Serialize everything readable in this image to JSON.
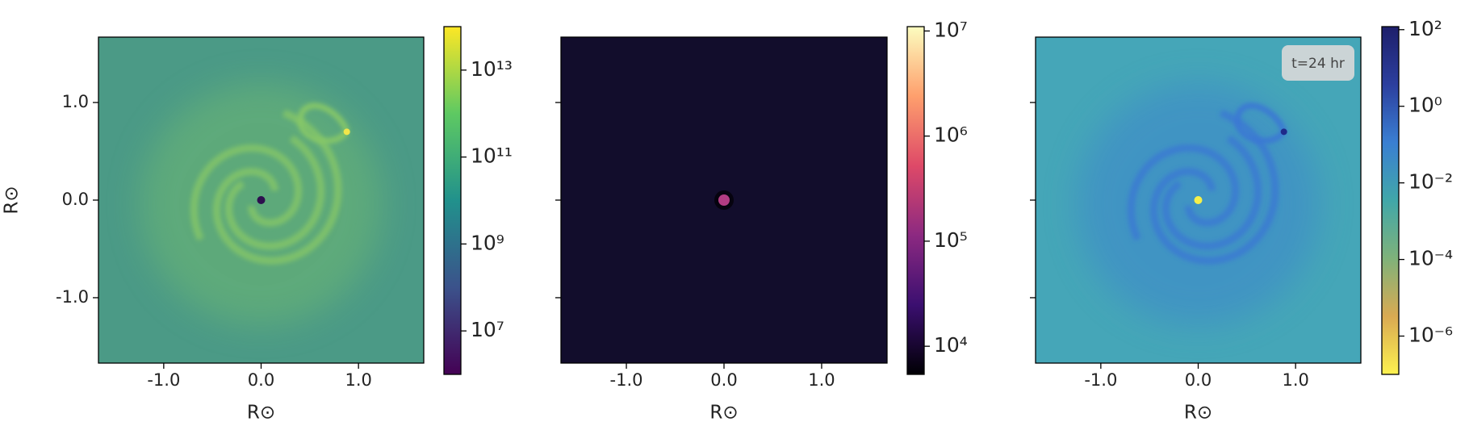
{
  "chart_data": [
    {
      "type": "heatmap",
      "xlabel": "R⊙",
      "ylabel": "R⊙",
      "xlim": [
        -1.67,
        1.67
      ],
      "ylim": [
        -1.67,
        1.67
      ],
      "xticks": [
        {
          "value": -1,
          "label": "-1.0"
        },
        {
          "value": 0,
          "label": "0.0"
        },
        {
          "value": 1,
          "label": "1.0"
        }
      ],
      "yticks": [
        {
          "value": -1,
          "label": "-1.0"
        },
        {
          "value": 0,
          "label": "0.0"
        },
        {
          "value": 1,
          "label": "1.0"
        }
      ],
      "colorbar": {
        "scale": "log",
        "lim": [
          1000000,
          100000000000000
        ],
        "ticks": [
          {
            "value": 10000000,
            "label": "10⁷"
          },
          {
            "value": 1000000000,
            "label": "10⁹"
          },
          {
            "value": 100000000000,
            "label": "10¹¹"
          },
          {
            "value": 10000000000000,
            "label": "10¹³"
          }
        ],
        "colors": [
          "#440154",
          "#3b528b",
          "#21918c",
          "#5ec962",
          "#fde725"
        ]
      }
    },
    {
      "type": "heatmap",
      "xlabel": "R⊙",
      "xlim": [
        -1.67,
        1.67
      ],
      "ylim": [
        -1.67,
        1.67
      ],
      "xticks": [
        {
          "value": -1,
          "label": "-1.0"
        },
        {
          "value": 0,
          "label": "0.0"
        },
        {
          "value": 1,
          "label": "1.0"
        }
      ],
      "yticks": [
        -1,
        0,
        1
      ],
      "ytick_labels": false,
      "colorbar": {
        "scale": "log",
        "lim": [
          5400,
          11000000
        ],
        "ticks": [
          {
            "value": 10000,
            "label": "10⁴"
          },
          {
            "value": 100000,
            "label": "10⁵"
          },
          {
            "value": 1000000,
            "label": "10⁶"
          },
          {
            "value": 10000000,
            "label": "10⁷"
          }
        ],
        "colors": [
          "#000004",
          "#3b0f70",
          "#8c2981",
          "#de4968",
          "#fe9f6d",
          "#fcfdbf"
        ]
      }
    },
    {
      "type": "heatmap",
      "xlabel": "R⊙",
      "annotation": "t=24 hr",
      "xlim": [
        -1.67,
        1.67
      ],
      "ylim": [
        -1.67,
        1.67
      ],
      "xticks": [
        {
          "value": -1,
          "label": "-1.0"
        },
        {
          "value": 0,
          "label": "0.0"
        },
        {
          "value": 1,
          "label": "1.0"
        }
      ],
      "yticks": [
        -1,
        0,
        1
      ],
      "ytick_labels": false,
      "colorbar": {
        "scale": "log",
        "lim": [
          1e-07,
          120
        ],
        "ticks": [
          {
            "value": 1e-06,
            "label": "10⁻⁶"
          },
          {
            "value": 0.0001,
            "label": "10⁻⁴"
          },
          {
            "value": 0.01,
            "label": "10⁻²"
          },
          {
            "value": 1,
            "label": "10⁰"
          },
          {
            "value": 100,
            "label": "10²"
          }
        ],
        "colors": [
          "#fdf150",
          "#d9aa52",
          "#7fb27a",
          "#41a7a9",
          "#3a7fd2",
          "#2c3f9e",
          "#1e1f6b"
        ]
      }
    }
  ]
}
